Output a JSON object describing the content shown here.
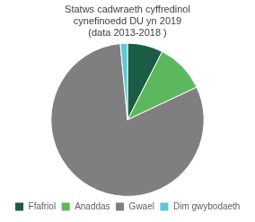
{
  "chart_data": {
    "type": "pie",
    "title": "Statws cadwraeth cyffredinol\ncynefinoedd DU yn 2019\n(data 2013-2018 )",
    "categories": [
      "Ffafriol",
      "Anaddas",
      "Gwael",
      "Dim gwybodaeth"
    ],
    "values": [
      7.5,
      10.5,
      80.5,
      1.5
    ],
    "colors": [
      "#1a5c45",
      "#5cb85c",
      "#7f7f7f",
      "#5bc8d5"
    ],
    "legend": "bottom"
  }
}
